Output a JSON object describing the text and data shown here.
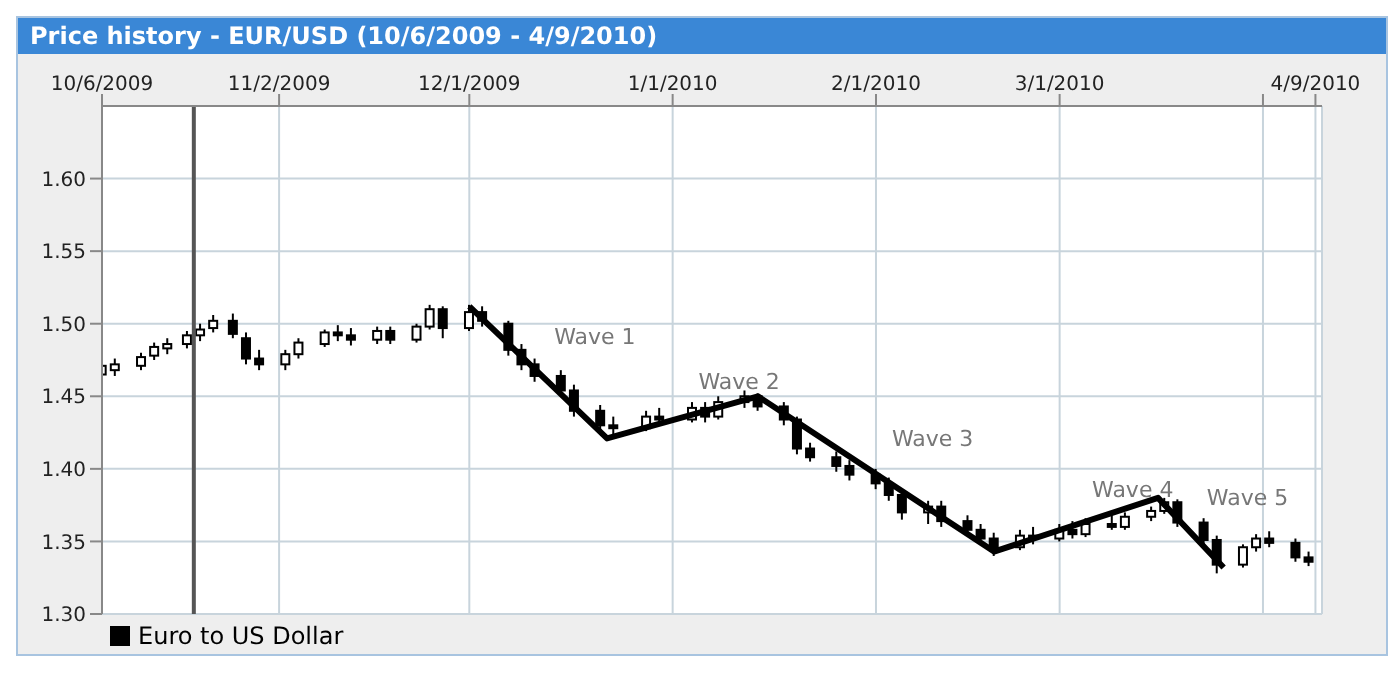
{
  "chart_data": {
    "type": "candlestick",
    "title": "Price history - EUR/USD (10/6/2009 - 4/9/2010)",
    "xlim": [
      "2009-10-06",
      "2010-04-10"
    ],
    "xticks": [
      {
        "value": "2009-10-06",
        "label": "10/6/2009"
      },
      {
        "value": "2009-11-02",
        "label": "11/2/2009"
      },
      {
        "value": "2009-12-01",
        "label": "12/1/2009"
      },
      {
        "value": "2010-01-01",
        "label": "1/1/2010"
      },
      {
        "value": "2010-02-01",
        "label": "2/1/2010"
      },
      {
        "value": "2010-03-01",
        "label": "3/1/2010"
      },
      {
        "value": "2010-04-01",
        "label": null
      },
      {
        "value": "2010-04-09",
        "label": "4/9/2010"
      }
    ],
    "ylim": [
      1.3,
      1.65
    ],
    "yticks": [
      {
        "value": 1.3,
        "label": "1.30"
      },
      {
        "value": 1.35,
        "label": "1.35"
      },
      {
        "value": 1.4,
        "label": "1.40"
      },
      {
        "value": 1.45,
        "label": "1.45"
      },
      {
        "value": 1.5,
        "label": "1.50"
      },
      {
        "value": 1.55,
        "label": "1.55"
      },
      {
        "value": 1.6,
        "label": "1.60"
      }
    ],
    "grid": true,
    "legend": "bottom left",
    "series": [
      {
        "name": "Euro to US Dollar",
        "color": "#000000",
        "x": [
          "2009-10-06",
          "2009-10-08",
          "2009-10-12",
          "2009-10-14",
          "2009-10-16",
          "2009-10-19",
          "2009-10-21",
          "2009-10-23",
          "2009-10-26",
          "2009-10-28",
          "2009-10-30",
          "2009-11-03",
          "2009-11-05",
          "2009-11-09",
          "2009-11-11",
          "2009-11-13",
          "2009-11-17",
          "2009-11-19",
          "2009-11-23",
          "2009-11-25",
          "2009-11-27",
          "2009-12-01",
          "2009-12-03",
          "2009-12-07",
          "2009-12-09",
          "2009-12-11",
          "2009-12-15",
          "2009-12-17",
          "2009-12-21",
          "2009-12-23",
          "2009-12-28",
          "2009-12-30",
          "2010-01-04",
          "2010-01-06",
          "2010-01-08",
          "2010-01-12",
          "2010-01-14",
          "2010-01-18",
          "2010-01-20",
          "2010-01-22",
          "2010-01-26",
          "2010-01-28",
          "2010-02-01",
          "2010-02-03",
          "2010-02-05",
          "2010-02-09",
          "2010-02-11",
          "2010-02-15",
          "2010-02-17",
          "2010-02-19",
          "2010-02-23",
          "2010-02-25",
          "2010-03-01",
          "2010-03-03",
          "2010-03-05",
          "2010-03-09",
          "2010-03-11",
          "2010-03-15",
          "2010-03-17",
          "2010-03-19",
          "2010-03-23",
          "2010-03-25",
          "2010-03-29",
          "2010-03-31",
          "2010-04-02",
          "2010-04-06",
          "2010-04-08"
        ],
        "ohlc": [
          [
            1.465,
            1.475,
            1.462,
            1.471
          ],
          [
            1.468,
            1.476,
            1.464,
            1.472
          ],
          [
            1.471,
            1.48,
            1.468,
            1.477
          ],
          [
            1.478,
            1.487,
            1.475,
            1.484
          ],
          [
            1.483,
            1.49,
            1.479,
            1.486
          ],
          [
            1.486,
            1.495,
            1.483,
            1.492
          ],
          [
            1.492,
            1.5,
            1.488,
            1.496
          ],
          [
            1.497,
            1.506,
            1.494,
            1.502
          ],
          [
            1.502,
            1.507,
            1.49,
            1.493
          ],
          [
            1.49,
            1.494,
            1.472,
            1.476
          ],
          [
            1.476,
            1.482,
            1.468,
            1.472
          ],
          [
            1.472,
            1.482,
            1.468,
            1.479
          ],
          [
            1.479,
            1.49,
            1.476,
            1.487
          ],
          [
            1.486,
            1.496,
            1.484,
            1.494
          ],
          [
            1.494,
            1.499,
            1.488,
            1.492
          ],
          [
            1.492,
            1.497,
            1.485,
            1.489
          ],
          [
            1.489,
            1.498,
            1.486,
            1.495
          ],
          [
            1.495,
            1.498,
            1.486,
            1.489
          ],
          [
            1.489,
            1.5,
            1.487,
            1.498
          ],
          [
            1.498,
            1.513,
            1.496,
            1.51
          ],
          [
            1.51,
            1.512,
            1.49,
            1.497
          ],
          [
            1.497,
            1.513,
            1.495,
            1.508
          ],
          [
            1.508,
            1.512,
            1.498,
            1.502
          ],
          [
            1.5,
            1.502,
            1.478,
            1.482
          ],
          [
            1.482,
            1.486,
            1.468,
            1.472
          ],
          [
            1.472,
            1.476,
            1.46,
            1.464
          ],
          [
            1.464,
            1.468,
            1.45,
            1.454
          ],
          [
            1.454,
            1.458,
            1.436,
            1.44
          ],
          [
            1.44,
            1.444,
            1.425,
            1.43
          ],
          [
            1.43,
            1.436,
            1.422,
            1.428
          ],
          [
            1.428,
            1.44,
            1.426,
            1.436
          ],
          [
            1.436,
            1.442,
            1.43,
            1.434
          ],
          [
            1.434,
            1.446,
            1.432,
            1.442
          ],
          [
            1.442,
            1.446,
            1.432,
            1.436
          ],
          [
            1.436,
            1.45,
            1.434,
            1.446
          ],
          [
            1.446,
            1.454,
            1.442,
            1.45
          ],
          [
            1.45,
            1.452,
            1.44,
            1.443
          ],
          [
            1.443,
            1.446,
            1.43,
            1.434
          ],
          [
            1.434,
            1.436,
            1.41,
            1.414
          ],
          [
            1.414,
            1.418,
            1.405,
            1.408
          ],
          [
            1.408,
            1.412,
            1.398,
            1.402
          ],
          [
            1.402,
            1.406,
            1.392,
            1.396
          ],
          [
            1.396,
            1.4,
            1.386,
            1.39
          ],
          [
            1.39,
            1.394,
            1.378,
            1.382
          ],
          [
            1.382,
            1.386,
            1.365,
            1.37
          ],
          [
            1.37,
            1.378,
            1.362,
            1.374
          ],
          [
            1.374,
            1.378,
            1.36,
            1.364
          ],
          [
            1.364,
            1.368,
            1.355,
            1.358
          ],
          [
            1.358,
            1.362,
            1.348,
            1.352
          ],
          [
            1.352,
            1.356,
            1.34,
            1.346
          ],
          [
            1.346,
            1.358,
            1.344,
            1.354
          ],
          [
            1.354,
            1.36,
            1.348,
            1.352
          ],
          [
            1.352,
            1.362,
            1.35,
            1.358
          ],
          [
            1.358,
            1.364,
            1.352,
            1.355
          ],
          [
            1.355,
            1.366,
            1.353,
            1.362
          ],
          [
            1.362,
            1.368,
            1.358,
            1.36
          ],
          [
            1.36,
            1.37,
            1.358,
            1.367
          ],
          [
            1.367,
            1.374,
            1.364,
            1.371
          ],
          [
            1.371,
            1.38,
            1.369,
            1.377
          ],
          [
            1.377,
            1.379,
            1.36,
            1.363
          ],
          [
            1.363,
            1.366,
            1.348,
            1.351
          ],
          [
            1.351,
            1.354,
            1.328,
            1.334
          ],
          [
            1.334,
            1.348,
            1.332,
            1.346
          ],
          [
            1.346,
            1.355,
            1.343,
            1.352
          ],
          [
            1.352,
            1.357,
            1.346,
            1.349
          ],
          [
            1.349,
            1.352,
            1.336,
            1.339
          ],
          [
            1.339,
            1.343,
            1.333,
            1.336
          ]
        ]
      },
      {
        "type": "line",
        "color": "#000000",
        "x": [
          "2009-12-01",
          "2009-12-22",
          "2010-01-14",
          "2010-02-19",
          "2010-03-16",
          "2010-03-26"
        ],
        "values": [
          1.512,
          1.421,
          1.45,
          1.343,
          1.38,
          1.332
        ]
      }
    ],
    "ref_lines": [
      {
        "axis": "x",
        "value": "2009-10-20",
        "color": "#555555"
      }
    ],
    "annotations": [
      "Wave 1",
      "Wave 2",
      "Wave 3",
      "Wave 4",
      "Wave 5"
    ]
  }
}
